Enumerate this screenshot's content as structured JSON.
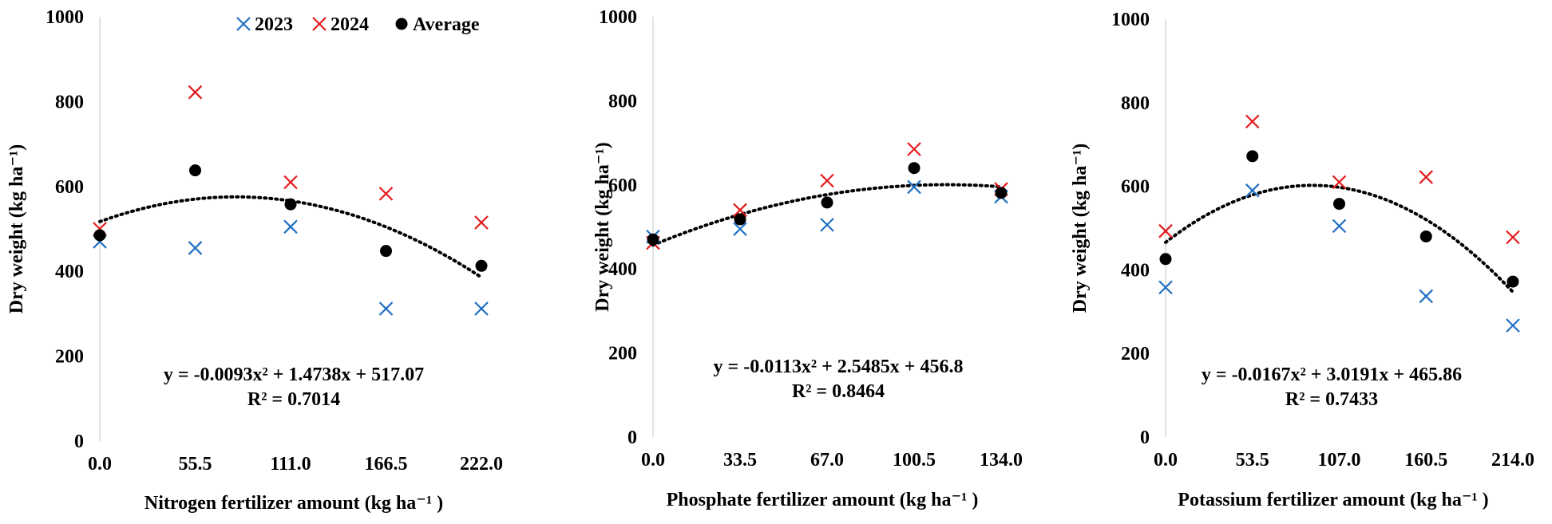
{
  "chart_data": [
    {
      "type": "scatter",
      "xlabel": "Nitrogen fertilizer amount (kg ha⁻¹ )",
      "ylabel": "Dry weight (kg ha⁻¹)",
      "x_ticks": [
        "0.0",
        "55.5",
        "111.0",
        "166.5",
        "222.0"
      ],
      "x": [
        0,
        55.5,
        111,
        166.5,
        222
      ],
      "xlim": [
        0,
        222
      ],
      "ylim": [
        0,
        1000
      ],
      "y_ticks": [
        "0",
        "200",
        "400",
        "600",
        "800",
        "1000"
      ],
      "series": [
        {
          "name": "2023",
          "marker": "x",
          "color": "#1f6fc4",
          "values": [
            470,
            455,
            505,
            312,
            312
          ]
        },
        {
          "name": "2024",
          "marker": "x",
          "color": "#e41a1c",
          "values": [
            500,
            822,
            610,
            583,
            515
          ]
        },
        {
          "name": "Average",
          "marker": "dot",
          "color": "#000000",
          "values": [
            485,
            638,
            558,
            448,
            413
          ]
        }
      ],
      "trendline": {
        "type": "polynomial",
        "a": -0.0093,
        "b": 1.4738,
        "c": 517.07
      },
      "equation": "y = -0.0093x² + 1.4738x + 517.07",
      "r_squared": "R² = 0.7014"
    },
    {
      "type": "scatter",
      "xlabel": "Phosphate fertilizer amount (kg ha⁻¹ )",
      "ylabel": "Dry weight (kg ha⁻¹)",
      "x_ticks": [
        "0.0",
        "33.5",
        "67.0",
        "100.5",
        "134.0"
      ],
      "x": [
        0,
        33.5,
        67,
        100.5,
        134
      ],
      "xlim": [
        0,
        134
      ],
      "ylim": [
        0,
        1000
      ],
      "y_ticks": [
        "0",
        "200",
        "400",
        "600",
        "800",
        "1000"
      ],
      "series": [
        {
          "name": "2023",
          "marker": "x",
          "color": "#1f6fc4",
          "values": [
            477,
            495,
            505,
            595,
            572
          ]
        },
        {
          "name": "2024",
          "marker": "x",
          "color": "#e41a1c",
          "values": [
            462,
            540,
            610,
            685,
            590
          ]
        },
        {
          "name": "Average",
          "marker": "dot",
          "color": "#000000",
          "values": [
            470,
            518,
            558,
            640,
            581
          ]
        }
      ],
      "trendline": {
        "type": "polynomial",
        "a": -0.0113,
        "b": 2.5485,
        "c": 456.8
      },
      "equation": "y = -0.0113x² + 2.5485x + 456.8",
      "r_squared": "R² = 0.8464"
    },
    {
      "type": "scatter",
      "xlabel": "Potassium fertilizer amount (kg ha⁻¹ )",
      "ylabel": "Dry weight (kg ha⁻¹)",
      "x_ticks": [
        "0.0",
        "53.5",
        "107.0",
        "160.5",
        "214.0"
      ],
      "x": [
        0,
        53.5,
        107,
        160.5,
        214
      ],
      "xlim": [
        0,
        214
      ],
      "ylim": [
        0,
        1000
      ],
      "y_ticks": [
        "0",
        "200",
        "400",
        "600",
        "800",
        "1000"
      ],
      "series": [
        {
          "name": "2023",
          "marker": "x",
          "color": "#1f6fc4",
          "values": [
            358,
            590,
            505,
            337,
            267
          ]
        },
        {
          "name": "2024",
          "marker": "x",
          "color": "#e41a1c",
          "values": [
            493,
            755,
            610,
            622,
            478
          ]
        },
        {
          "name": "Average",
          "marker": "dot",
          "color": "#000000",
          "values": [
            426,
            672,
            558,
            480,
            372
          ]
        }
      ],
      "trendline": {
        "type": "polynomial",
        "a": -0.0167,
        "b": 3.0191,
        "c": 465.86
      },
      "equation": "y = -0.0167x² + 3.0191x + 465.86",
      "r_squared": "R² = 0.7433"
    }
  ],
  "legend": [
    {
      "label": "2023",
      "marker": "x",
      "color": "#1f6fc4"
    },
    {
      "label": "2024",
      "marker": "x",
      "color": "#e41a1c"
    },
    {
      "label": "Average",
      "marker": "dot",
      "color": "#000000"
    }
  ]
}
